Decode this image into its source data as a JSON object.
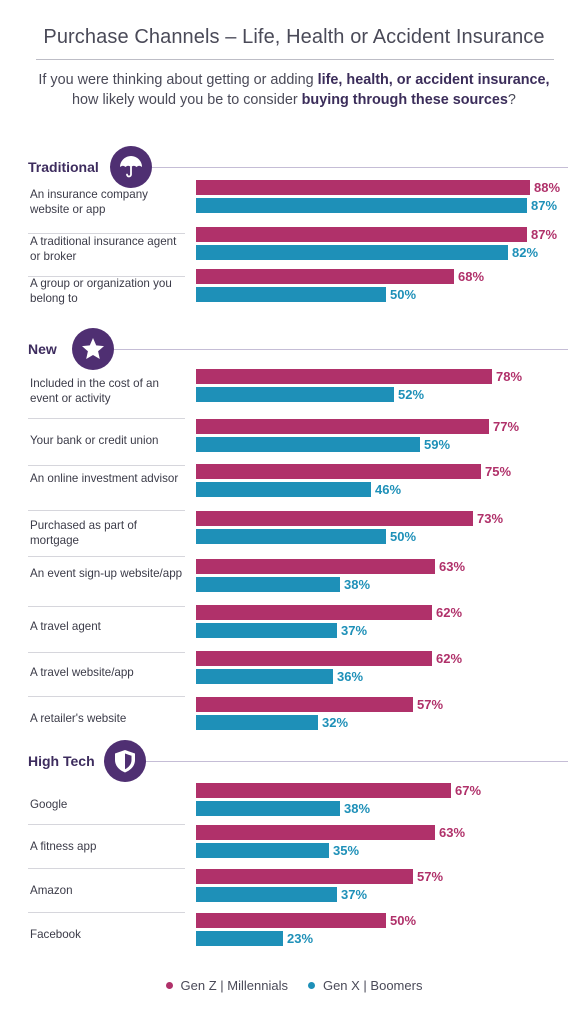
{
  "title": "Purchase Channels – Life, Health or Accident Insurance",
  "subtitle": {
    "l1_a": "If you were thinking about getting or adding ",
    "l1_b": "life, health, or accident insurance,",
    "l2_a": "how likely would you be to consider ",
    "l2_b": "buying through these sources",
    "l2_c": "?"
  },
  "legend": [
    {
      "name": "Gen Z  |  Millennials",
      "color": "#b0316a"
    },
    {
      "name": "Gen X  |  Boomers",
      "color": "#1e90b8"
    }
  ],
  "chart_data": {
    "type": "bar",
    "orientation": "horizontal",
    "value_suffix": "%",
    "xlim": [
      0,
      100
    ],
    "series_colors": [
      "#b0316a",
      "#1e90b8"
    ],
    "sections": [
      {
        "name": "Traditional",
        "icon": "umbrella-icon",
        "categories": [
          {
            "label": "An insurance company website or app",
            "values": [
              88,
              87
            ]
          },
          {
            "label": "A traditional insurance agent or broker",
            "values": [
              87,
              82
            ]
          },
          {
            "label": "A group or organization you belong to",
            "values": [
              68,
              50
            ]
          }
        ]
      },
      {
        "name": "New",
        "icon": "star-icon",
        "categories": [
          {
            "label": "Included in the cost of an event or activity",
            "values": [
              78,
              52
            ]
          },
          {
            "label": "Your bank or credit union",
            "values": [
              77,
              59
            ]
          },
          {
            "label": "An online investment advisor",
            "values": [
              75,
              46
            ]
          },
          {
            "label": "Purchased as part of mortgage",
            "values": [
              73,
              50
            ]
          },
          {
            "label": "An event sign-up website/app",
            "values": [
              63,
              38
            ]
          },
          {
            "label": "A travel agent",
            "values": [
              62,
              37
            ]
          },
          {
            "label": "A travel website/app",
            "values": [
              62,
              36
            ]
          },
          {
            "label": "A retailer's website",
            "values": [
              57,
              32
            ]
          }
        ]
      },
      {
        "name": "High Tech",
        "icon": "shield-icon",
        "categories": [
          {
            "label": "Google",
            "values": [
              67,
              38
            ]
          },
          {
            "label": "A fitness app",
            "values": [
              63,
              35
            ]
          },
          {
            "label": "Amazon",
            "values": [
              57,
              37
            ]
          },
          {
            "label": "Facebook",
            "values": [
              50,
              23
            ]
          }
        ]
      }
    ]
  }
}
